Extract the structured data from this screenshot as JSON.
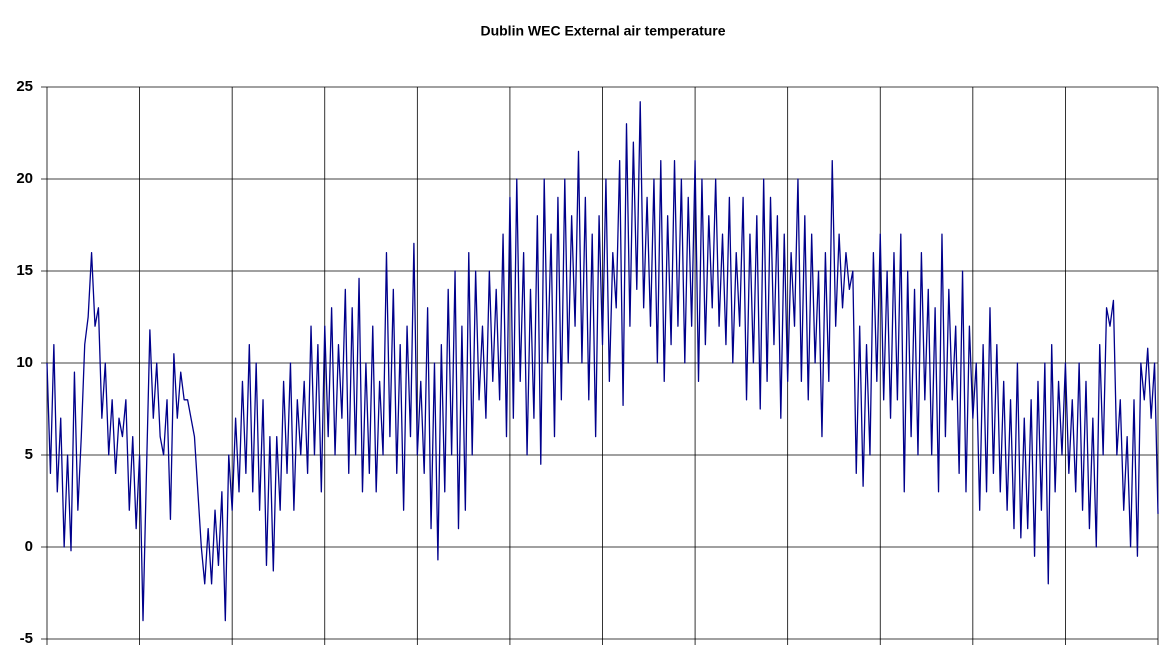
{
  "chart_data": {
    "type": "line",
    "title": "Dublin WEC External air temperature",
    "series": [
      {
        "name": "External air temperature",
        "color": "#00008b",
        "values": [
          10,
          4,
          11,
          3,
          7,
          0,
          5,
          -0.2,
          9.5,
          2,
          6,
          11,
          12.5,
          16,
          12,
          13,
          7,
          10,
          5,
          8,
          4,
          7,
          6,
          8,
          2,
          6,
          1,
          5,
          -4,
          4,
          11.8,
          7,
          10,
          6,
          5,
          8,
          1.5,
          10.5,
          7,
          9.5,
          8,
          8,
          7,
          6,
          3,
          0,
          -2,
          1,
          -2,
          2,
          -1,
          3,
          -4,
          5,
          2,
          7,
          3,
          9,
          4,
          11,
          3,
          10,
          2,
          8,
          -1,
          6,
          -1.3,
          6,
          2,
          9,
          4,
          10,
          2,
          8,
          5,
          9,
          4,
          12,
          5,
          11,
          3,
          12,
          6,
          13,
          5,
          11,
          7,
          14,
          4,
          13,
          5,
          14.6,
          3,
          10,
          4,
          12,
          3,
          9,
          5,
          16,
          6,
          14,
          4,
          11,
          2,
          12,
          6,
          16.5,
          5,
          9,
          4,
          13,
          1,
          10,
          -0.7,
          11,
          3,
          14,
          5,
          15,
          1,
          12,
          2,
          16,
          5,
          15,
          8,
          12,
          7,
          15,
          9,
          14,
          8,
          17,
          6,
          19,
          7,
          20,
          9,
          16,
          5,
          14,
          7,
          18,
          4.5,
          20,
          10,
          17,
          6,
          19,
          8,
          20,
          10,
          18,
          12,
          21.5,
          10,
          19,
          8,
          17,
          6,
          18,
          11,
          20,
          9,
          16,
          13,
          21,
          7.7,
          23,
          12,
          22,
          14,
          24.2,
          13,
          19,
          12,
          20,
          10,
          21,
          9,
          18,
          11,
          21,
          12,
          20,
          10,
          19,
          12,
          21,
          9,
          20,
          11,
          18,
          13,
          20,
          12,
          17,
          11,
          19,
          10,
          16,
          12,
          19,
          8,
          17,
          10,
          18,
          7.5,
          20,
          9,
          19,
          11,
          18,
          7,
          17,
          9,
          16,
          12,
          20,
          9,
          18,
          8,
          17,
          10,
          15,
          6,
          16,
          9,
          21,
          12,
          17,
          13,
          16,
          14,
          15,
          4,
          12,
          3.3,
          11,
          5,
          16,
          9,
          17,
          8,
          15,
          7,
          16,
          8,
          17,
          3,
          15,
          6,
          14,
          5,
          16,
          8,
          14,
          5,
          13,
          3,
          17,
          6,
          14,
          8,
          12,
          4,
          15,
          3,
          12,
          7,
          10,
          2,
          11,
          3,
          13,
          4,
          11,
          3,
          9,
          2,
          8,
          1,
          10,
          0.5,
          7,
          1,
          8,
          -0.5,
          9,
          2,
          10,
          -2,
          11,
          3,
          9,
          5,
          10,
          4,
          8,
          3,
          10,
          2,
          9,
          1,
          7,
          0,
          11,
          5,
          13,
          12,
          13.4,
          5,
          8,
          2,
          6,
          0,
          8,
          -0.5,
          10,
          8,
          10.8,
          7,
          10,
          1.8
        ]
      }
    ],
    "ylim": [
      -5,
      25
    ],
    "yticks": [
      -5,
      0,
      5,
      10,
      15,
      20,
      25
    ],
    "grid": true
  }
}
